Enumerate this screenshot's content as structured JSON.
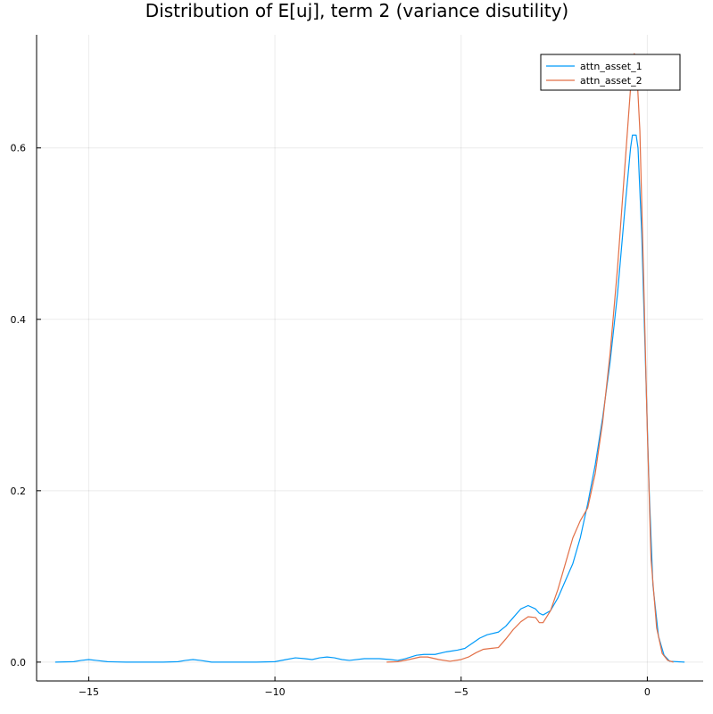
{
  "chart_data": {
    "type": "line",
    "title": "Distribution of E[uj], term 2 (variance disutility)",
    "xlabel": "",
    "ylabel": "",
    "xlim": [
      -16.4,
      1.5
    ],
    "ylim": [
      -0.022,
      0.732
    ],
    "x_ticks": [
      -15,
      -10,
      -5,
      0
    ],
    "x_tick_labels": [
      "−15",
      "−10",
      "−5",
      "0"
    ],
    "y_ticks": [
      0.0,
      0.2,
      0.4,
      0.6
    ],
    "y_tick_labels": [
      "0.0",
      "0.2",
      "0.4",
      "0.6"
    ],
    "grid": true,
    "legend_position": "top-right",
    "series": [
      {
        "name": "attn_asset_1",
        "color": "#009AF9",
        "points": [
          [
            -15.9,
            0.0
          ],
          [
            -15.4,
            0.0005
          ],
          [
            -15.2,
            0.002
          ],
          [
            -15.0,
            0.003
          ],
          [
            -14.8,
            0.002
          ],
          [
            -14.5,
            0.0005
          ],
          [
            -14.0,
            0.0
          ],
          [
            -13.0,
            0.0
          ],
          [
            -12.6,
            0.0005
          ],
          [
            -12.4,
            0.002
          ],
          [
            -12.2,
            0.003
          ],
          [
            -12.0,
            0.002
          ],
          [
            -11.7,
            0.0
          ],
          [
            -10.5,
            0.0
          ],
          [
            -10.0,
            0.0005
          ],
          [
            -9.7,
            0.003
          ],
          [
            -9.45,
            0.005
          ],
          [
            -9.2,
            0.004
          ],
          [
            -9.0,
            0.003
          ],
          [
            -8.8,
            0.005
          ],
          [
            -8.6,
            0.006
          ],
          [
            -8.4,
            0.005
          ],
          [
            -8.2,
            0.003
          ],
          [
            -8.0,
            0.002
          ],
          [
            -7.6,
            0.004
          ],
          [
            -7.2,
            0.004
          ],
          [
            -6.9,
            0.003
          ],
          [
            -6.7,
            0.002
          ],
          [
            -6.5,
            0.004
          ],
          [
            -6.2,
            0.008
          ],
          [
            -6.0,
            0.009
          ],
          [
            -5.7,
            0.009
          ],
          [
            -5.4,
            0.012
          ],
          [
            -5.1,
            0.014
          ],
          [
            -4.9,
            0.016
          ],
          [
            -4.7,
            0.022
          ],
          [
            -4.5,
            0.028
          ],
          [
            -4.3,
            0.032
          ],
          [
            -4.0,
            0.035
          ],
          [
            -3.8,
            0.042
          ],
          [
            -3.6,
            0.052
          ],
          [
            -3.4,
            0.062
          ],
          [
            -3.2,
            0.066
          ],
          [
            -3.0,
            0.062
          ],
          [
            -2.9,
            0.057
          ],
          [
            -2.8,
            0.055
          ],
          [
            -2.6,
            0.06
          ],
          [
            -2.4,
            0.075
          ],
          [
            -2.2,
            0.095
          ],
          [
            -2.0,
            0.115
          ],
          [
            -1.8,
            0.145
          ],
          [
            -1.6,
            0.185
          ],
          [
            -1.4,
            0.23
          ],
          [
            -1.2,
            0.285
          ],
          [
            -1.0,
            0.35
          ],
          [
            -0.8,
            0.43
          ],
          [
            -0.6,
            0.53
          ],
          [
            -0.45,
            0.6
          ],
          [
            -0.4,
            0.615
          ],
          [
            -0.3,
            0.615
          ],
          [
            -0.25,
            0.6
          ],
          [
            -0.15,
            0.5
          ],
          [
            -0.05,
            0.35
          ],
          [
            0.05,
            0.2
          ],
          [
            0.15,
            0.09
          ],
          [
            0.3,
            0.03
          ],
          [
            0.45,
            0.008
          ],
          [
            0.6,
            0.001
          ],
          [
            1.0,
            0.0
          ]
        ]
      },
      {
        "name": "attn_asset_2",
        "color": "#E26F46",
        "points": [
          [
            -7.0,
            0.0
          ],
          [
            -6.7,
            0.0005
          ],
          [
            -6.4,
            0.003
          ],
          [
            -6.1,
            0.006
          ],
          [
            -5.9,
            0.006
          ],
          [
            -5.6,
            0.003
          ],
          [
            -5.3,
            0.001
          ],
          [
            -5.0,
            0.003
          ],
          [
            -4.8,
            0.006
          ],
          [
            -4.6,
            0.011
          ],
          [
            -4.4,
            0.015
          ],
          [
            -4.2,
            0.016
          ],
          [
            -4.0,
            0.017
          ],
          [
            -3.8,
            0.027
          ],
          [
            -3.6,
            0.038
          ],
          [
            -3.4,
            0.047
          ],
          [
            -3.2,
            0.053
          ],
          [
            -3.0,
            0.052
          ],
          [
            -2.9,
            0.046
          ],
          [
            -2.8,
            0.046
          ],
          [
            -2.6,
            0.06
          ],
          [
            -2.4,
            0.085
          ],
          [
            -2.2,
            0.115
          ],
          [
            -2.0,
            0.145
          ],
          [
            -1.8,
            0.165
          ],
          [
            -1.6,
            0.18
          ],
          [
            -1.4,
            0.22
          ],
          [
            -1.2,
            0.28
          ],
          [
            -1.0,
            0.36
          ],
          [
            -0.8,
            0.46
          ],
          [
            -0.6,
            0.58
          ],
          [
            -0.45,
            0.67
          ],
          [
            -0.35,
            0.71
          ],
          [
            -0.3,
            0.705
          ],
          [
            -0.2,
            0.62
          ],
          [
            -0.1,
            0.45
          ],
          [
            0.0,
            0.27
          ],
          [
            0.1,
            0.12
          ],
          [
            0.25,
            0.04
          ],
          [
            0.4,
            0.01
          ],
          [
            0.55,
            0.002
          ],
          [
            0.7,
            0.0
          ]
        ]
      }
    ]
  }
}
